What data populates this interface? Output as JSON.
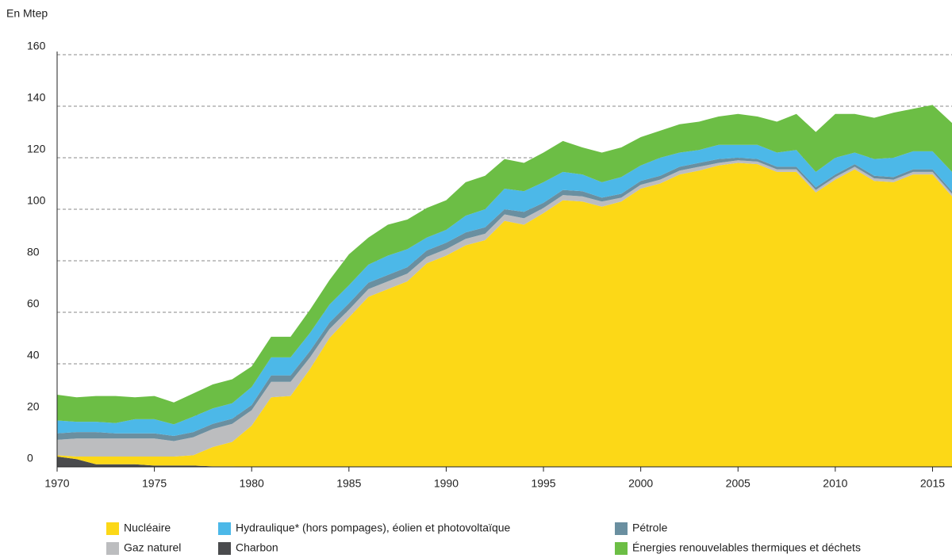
{
  "chart_data": {
    "type": "stacked_area",
    "y_label": "En Mtep",
    "x": [
      1970,
      1971,
      1972,
      1973,
      1974,
      1975,
      1976,
      1977,
      1978,
      1979,
      1980,
      1981,
      1982,
      1983,
      1984,
      1985,
      1986,
      1987,
      1988,
      1989,
      1990,
      1991,
      1992,
      1993,
      1994,
      1995,
      1996,
      1997,
      1998,
      1999,
      2000,
      2001,
      2002,
      2003,
      2004,
      2005,
      2006,
      2007,
      2008,
      2009,
      2010,
      2011,
      2012,
      2013,
      2014,
      2015,
      2016
    ],
    "xlim": [
      1970,
      2016
    ],
    "xticks": [
      1970,
      1975,
      1980,
      1985,
      1990,
      1995,
      2000,
      2005,
      2010,
      2015
    ],
    "ylim": [
      0,
      160
    ],
    "yticks": [
      0,
      20,
      40,
      60,
      80,
      100,
      120,
      140,
      160
    ],
    "grid": true,
    "legend": "bottom",
    "series": [
      {
        "name": "Charbon",
        "color": "#4a4b4d",
        "values": [
          4,
          3,
          1,
          1,
          1,
          0.5,
          0.5,
          0.5,
          0.2,
          0.2,
          0,
          0,
          0,
          0,
          0,
          0,
          0,
          0,
          0,
          0,
          0,
          0,
          0,
          0,
          0,
          0,
          0,
          0,
          0,
          0,
          0,
          0,
          0,
          0,
          0,
          0,
          0,
          0,
          0,
          0,
          0,
          0,
          0,
          0,
          0,
          0,
          0
        ]
      },
      {
        "name": "Nucléaire",
        "color": "#fcd817",
        "values": [
          0.5,
          1,
          3,
          3,
          3,
          3.5,
          3.5,
          4,
          7.5,
          9.5,
          16,
          27,
          27.5,
          38,
          50,
          58,
          66,
          69,
          72,
          79,
          82,
          86,
          88,
          95.5,
          94,
          98.5,
          103.5,
          103,
          101,
          103,
          108,
          110,
          113.5,
          115,
          117,
          118,
          117.5,
          114.5,
          114.5,
          106.5,
          111.5,
          115.5,
          111,
          110.5,
          113.5,
          113.5,
          105
        ]
      },
      {
        "name": "Gaz naturel",
        "color": "#bcbdbf",
        "values": [
          6,
          7,
          7,
          7,
          7,
          7,
          6,
          7,
          7,
          7,
          6,
          6,
          5.5,
          4.5,
          3.5,
          3,
          3,
          3,
          3,
          2.5,
          2.5,
          2.5,
          2.5,
          2.5,
          2.5,
          2,
          2,
          2,
          2,
          1.5,
          1.5,
          1.5,
          1.5,
          1.5,
          1,
          1,
          1,
          1,
          1,
          1,
          1,
          1,
          1,
          1,
          1,
          1,
          1
        ]
      },
      {
        "name": "Pétrole",
        "color": "#6a8fa0",
        "values": [
          2.5,
          2.5,
          2.5,
          2,
          2,
          2,
          2,
          2,
          2,
          2,
          2,
          2.5,
          2.5,
          2.5,
          2.5,
          2.5,
          2.5,
          2.5,
          2.5,
          2.5,
          2.5,
          2.5,
          2.5,
          2,
          2.5,
          2,
          2,
          2,
          1.5,
          1.5,
          1.5,
          1.5,
          1.5,
          1.5,
          1.5,
          1,
          1,
          1,
          1,
          1,
          1,
          1,
          1,
          1,
          1,
          1,
          1
        ]
      },
      {
        "name": "Hydraulique* (hors pompages), éolien et photovoltaïque",
        "color": "#4cb8e8",
        "values": [
          5,
          4,
          4,
          4,
          5.5,
          5.5,
          4.5,
          6,
          6,
          6,
          7,
          7,
          7,
          7,
          7,
          7,
          7,
          7.5,
          7,
          5,
          5,
          6.5,
          7,
          8,
          8,
          8,
          7,
          6.5,
          6,
          6.5,
          6,
          7,
          5.5,
          5,
          5.5,
          5,
          5.5,
          5.5,
          6.5,
          6,
          6.5,
          4.5,
          6.5,
          7.5,
          7,
          7,
          7.5
        ]
      },
      {
        "name": "Énergies renouvelables thermiques et déchets",
        "color": "#6cbe45",
        "values": [
          10,
          9.5,
          10,
          10.5,
          8.5,
          9,
          8.5,
          9,
          9.3,
          9.3,
          8,
          8,
          8,
          9,
          9.5,
          12,
          10.5,
          12,
          11.5,
          11.5,
          11.5,
          13,
          13,
          11.5,
          11,
          11.5,
          12,
          10.5,
          11.5,
          11.5,
          11,
          10.5,
          11,
          11,
          11,
          12,
          11,
          12,
          14,
          15.5,
          17,
          15,
          16,
          17.5,
          16.5,
          18,
          19
        ]
      }
    ]
  }
}
